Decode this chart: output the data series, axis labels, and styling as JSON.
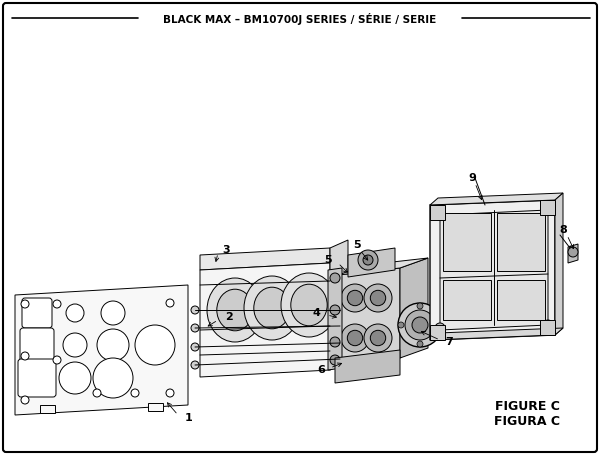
{
  "title": "BLACK MAX – BM10700J SERIES / SÉRIE / SERIE",
  "figure_label": "FIGURE C",
  "figura_label": "FIGURA C",
  "bg_color": "#ffffff",
  "line_color": "#000000",
  "text_color": "#000000"
}
